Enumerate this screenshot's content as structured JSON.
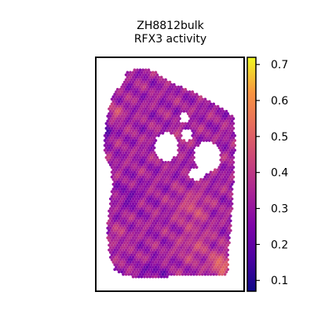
{
  "chart_data": {
    "type": "heatmap",
    "title": "ZH8812bulk",
    "subtitle": "RFX3 activity",
    "colormap": "plasma",
    "colorbar": {
      "range": [
        0.07,
        0.72
      ],
      "ticks": [
        0.1,
        0.2,
        0.3,
        0.4,
        0.5,
        0.6,
        0.7
      ],
      "tick_labels": [
        "0.1",
        "0.2",
        "0.3",
        "0.4",
        "0.5",
        "0.6",
        "0.7"
      ]
    },
    "grid": false,
    "summary": {
      "max_region": "bottom-right",
      "max_value": 0.72,
      "min_region": "left edge",
      "min_value": 0.07,
      "typical_value": 0.32
    }
  }
}
